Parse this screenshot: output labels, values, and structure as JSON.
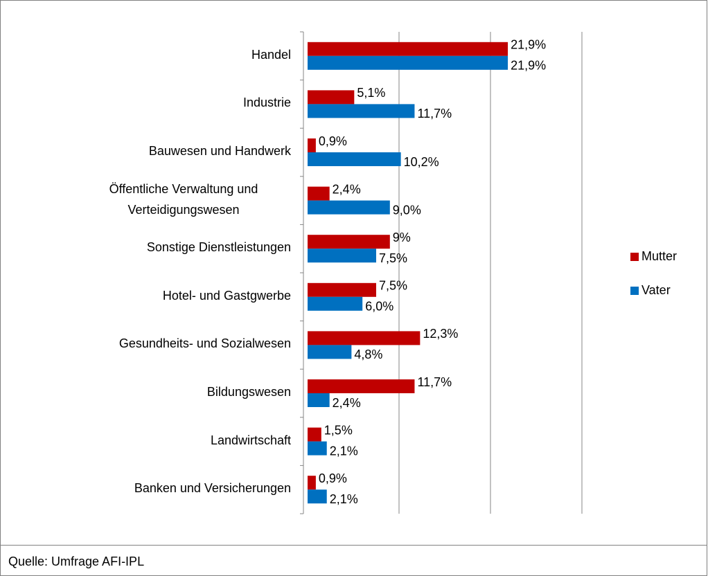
{
  "chart_data": {
    "type": "bar",
    "orientation": "horizontal",
    "categories": [
      "Handel",
      "Industrie",
      "Bauwesen und Handwerk",
      "Öffentliche Verwaltung und Verteidigungswesen",
      "Sonstige Dienstleistungen",
      "Hotel- und Gastgwerbe",
      "Gesundheits- und Sozialwesen",
      "Bildungswesen",
      "Landwirtschaft",
      "Banken und Versicherungen"
    ],
    "series": [
      {
        "name": "Mutter",
        "color": "#c00000",
        "values": [
          21.9,
          5.1,
          0.9,
          2.4,
          9,
          7.5,
          12.3,
          11.7,
          1.5,
          0.9
        ],
        "value_labels": [
          "21,9%",
          "5,1%",
          "0,9%",
          "2,4%",
          "9%",
          "7,5%",
          "12,3%",
          "11,7%",
          "1,5%",
          "0,9%"
        ]
      },
      {
        "name": "Vater",
        "color": "#0070c0",
        "values": [
          21.9,
          11.7,
          10.2,
          9.0,
          7.5,
          6.0,
          4.8,
          2.4,
          2.1,
          2.1
        ],
        "value_labels": [
          "21,9%",
          "11,7%",
          "10,2%",
          "9,0%",
          "7,5%",
          "6,0%",
          "4,8%",
          "2,4%",
          "2,1%",
          "2,1%"
        ]
      }
    ],
    "xlim": [
      0,
      30
    ],
    "xticks": [
      0,
      10,
      20,
      30
    ],
    "grid": true,
    "legend": "right",
    "source": "Quelle: Umfrage AFI-IPL"
  }
}
